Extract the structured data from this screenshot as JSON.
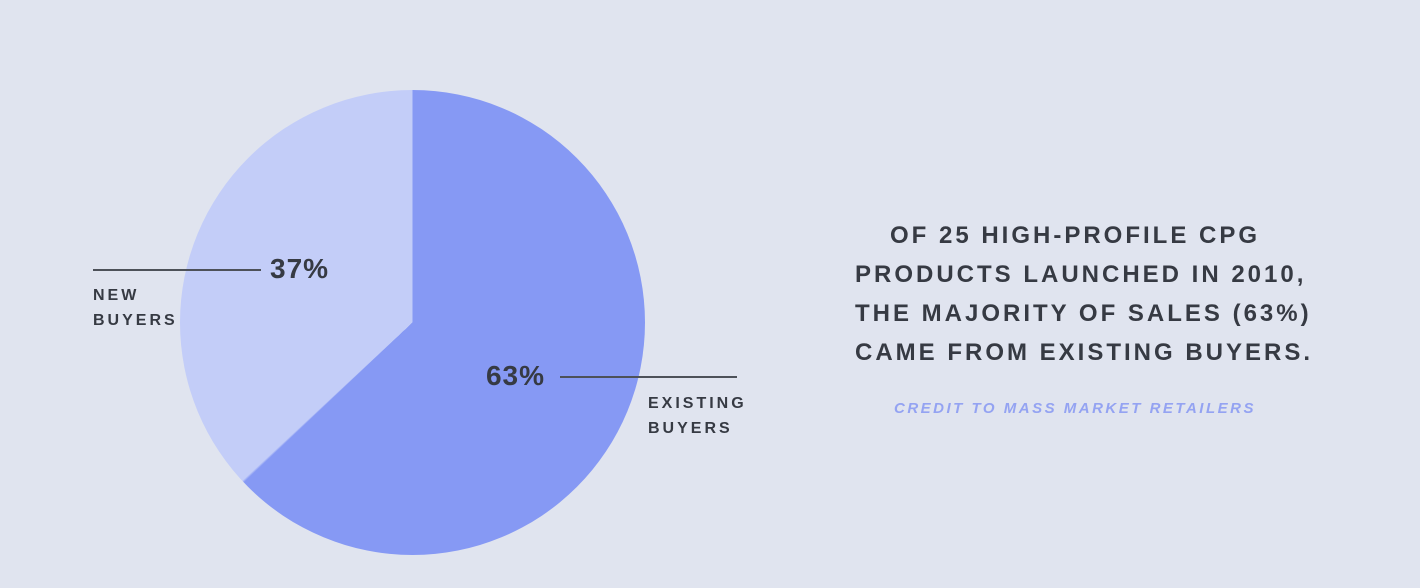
{
  "colors": {
    "background": "#e0e4ef",
    "slice-existing": "#8699f4",
    "slice-new": "#c3cdf8",
    "ink": "#363a43",
    "leader-line": "#4d5159",
    "credit": "#94a3f2"
  },
  "chart_data": {
    "type": "pie",
    "title": "",
    "direction": "clockwise",
    "start_angle_deg": 0,
    "legend_position": "callout-labels",
    "slices": [
      {
        "label": "EXISTING BUYERS",
        "callout_label": "EXISTING\nBUYERS",
        "value": 63,
        "display": "63%",
        "color": "#8699f4"
      },
      {
        "label": "NEW BUYERS",
        "callout_label": "NEW\nBUYERS",
        "value": 37,
        "display": "37%",
        "color": "#c3cdf8"
      }
    ]
  },
  "stat_text": {
    "lines": [
      "OF 25 HIGH-PROFILE CPG",
      "PRODUCTS LAUNCHED IN 2010,",
      "THE MAJORITY OF SALES (63%)",
      "CAME FROM EXISTING BUYERS."
    ],
    "credit": "CREDIT TO MASS MARKET RETAILERS"
  }
}
